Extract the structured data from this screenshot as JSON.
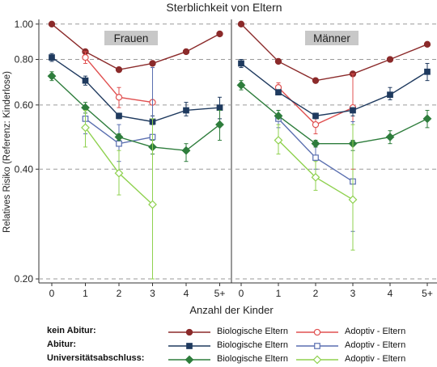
{
  "chart_data": {
    "type": "line",
    "title": "Sterblichkeit von Eltern",
    "xlabel": "Anzahl der Kinder",
    "ylabel": "Relatives Risiko (Referenz: Kinderlose)",
    "y_scale": "log",
    "ylim": [
      0.195,
      1.03
    ],
    "yticks": [
      1.0,
      0.8,
      0.6,
      0.4,
      0.2
    ],
    "ytick_labels": [
      "1.00",
      "0.80",
      "0.60",
      "0.40",
      "0.20"
    ],
    "x_categories": [
      "0",
      "1",
      "2",
      "3",
      "4",
      "5+"
    ],
    "grid": "dashed horizontal",
    "colors": {
      "kein_bio": "#8b2a2a",
      "kein_adopt": "#e05050",
      "abitur_bio": "#1f3a5f",
      "abitur_adopt": "#5a6fb0",
      "uni_bio": "#2e7d3c",
      "uni_adopt": "#8fd14f"
    },
    "panels": [
      {
        "label": "Frauen",
        "series": [
          {
            "key": "kein_bio",
            "marker": "circle-filled",
            "points": [
              {
                "x": 0,
                "y": 1.0
              },
              {
                "x": 1,
                "y": 0.84
              },
              {
                "x": 2,
                "y": 0.75
              },
              {
                "x": 3,
                "y": 0.78
              },
              {
                "x": 4,
                "y": 0.84
              },
              {
                "x": 5,
                "y": 0.94
              }
            ]
          },
          {
            "key": "kein_adopt",
            "marker": "circle-open",
            "points": [
              {
                "x": 1,
                "y": 0.81,
                "lo": 0.78,
                "hi": 0.84
              },
              {
                "x": 2,
                "y": 0.63,
                "lo": 0.59,
                "hi": 0.67
              },
              {
                "x": 3,
                "y": 0.61,
                "lo": 0.32,
                "hi": 0.76
              }
            ]
          },
          {
            "key": "abitur_bio",
            "marker": "square-filled",
            "points": [
              {
                "x": 0,
                "y": 0.81,
                "lo": 0.79,
                "hi": 0.83
              },
              {
                "x": 1,
                "y": 0.7,
                "lo": 0.68,
                "hi": 0.72
              },
              {
                "x": 2,
                "y": 0.56,
                "lo": 0.55,
                "hi": 0.57
              },
              {
                "x": 3,
                "y": 0.54,
                "lo": 0.53,
                "hi": 0.56
              },
              {
                "x": 4,
                "y": 0.58,
                "lo": 0.56,
                "hi": 0.61
              },
              {
                "x": 5,
                "y": 0.59,
                "lo": 0.55,
                "hi": 0.63
              }
            ]
          },
          {
            "key": "abitur_adopt",
            "marker": "square-open",
            "points": [
              {
                "x": 1,
                "y": 0.55,
                "lo": 0.5,
                "hi": 0.58
              },
              {
                "x": 2,
                "y": 0.47,
                "lo": 0.42,
                "hi": 0.53
              },
              {
                "x": 3,
                "y": 0.49,
                "lo": 0.32,
                "hi": 0.76
              }
            ]
          },
          {
            "key": "uni_bio",
            "marker": "diamond-filled",
            "points": [
              {
                "x": 0,
                "y": 0.72,
                "lo": 0.7,
                "hi": 0.74
              },
              {
                "x": 1,
                "y": 0.59,
                "lo": 0.57,
                "hi": 0.61
              },
              {
                "x": 2,
                "y": 0.49,
                "lo": 0.48,
                "hi": 0.5
              },
              {
                "x": 3,
                "y": 0.46,
                "lo": 0.44,
                "hi": 0.48
              },
              {
                "x": 4,
                "y": 0.45,
                "lo": 0.42,
                "hi": 0.47
              },
              {
                "x": 5,
                "y": 0.53,
                "lo": 0.48,
                "hi": 0.58
              }
            ]
          },
          {
            "key": "uni_adopt",
            "marker": "diamond-open",
            "points": [
              {
                "x": 1,
                "y": 0.52,
                "lo": 0.46,
                "hi": 0.58
              },
              {
                "x": 2,
                "y": 0.39,
                "lo": 0.34,
                "hi": 0.45
              },
              {
                "x": 3,
                "y": 0.32,
                "lo": 0.2,
                "hi": 0.55
              }
            ]
          }
        ]
      },
      {
        "label": "Männer",
        "series": [
          {
            "key": "kein_bio",
            "marker": "circle-filled",
            "points": [
              {
                "x": 0,
                "y": 1.0
              },
              {
                "x": 1,
                "y": 0.79
              },
              {
                "x": 2,
                "y": 0.7
              },
              {
                "x": 3,
                "y": 0.73
              },
              {
                "x": 4,
                "y": 0.8
              },
              {
                "x": 5,
                "y": 0.88
              }
            ]
          },
          {
            "key": "kein_adopt",
            "marker": "circle-open",
            "points": [
              {
                "x": 1,
                "y": 0.67,
                "lo": 0.64,
                "hi": 0.69
              },
              {
                "x": 2,
                "y": 0.53,
                "lo": 0.5,
                "hi": 0.56
              },
              {
                "x": 3,
                "y": 0.59,
                "lo": 0.4,
                "hi": 0.73
              }
            ]
          },
          {
            "key": "abitur_bio",
            "marker": "square-filled",
            "points": [
              {
                "x": 0,
                "y": 0.78,
                "lo": 0.76,
                "hi": 0.8
              },
              {
                "x": 1,
                "y": 0.65,
                "lo": 0.64,
                "hi": 0.66
              },
              {
                "x": 2,
                "y": 0.56,
                "lo": 0.55,
                "hi": 0.57
              },
              {
                "x": 3,
                "y": 0.58,
                "lo": 0.56,
                "hi": 0.59
              },
              {
                "x": 4,
                "y": 0.64,
                "lo": 0.62,
                "hi": 0.67
              },
              {
                "x": 5,
                "y": 0.74,
                "lo": 0.7,
                "hi": 0.78
              }
            ]
          },
          {
            "key": "abitur_adopt",
            "marker": "square-open",
            "points": [
              {
                "x": 1,
                "y": 0.55,
                "lo": 0.52,
                "hi": 0.58
              },
              {
                "x": 2,
                "y": 0.43,
                "lo": 0.4,
                "hi": 0.46
              },
              {
                "x": 3,
                "y": 0.37,
                "lo": 0.27,
                "hi": 0.54
              }
            ]
          },
          {
            "key": "uni_bio",
            "marker": "diamond-filled",
            "points": [
              {
                "x": 0,
                "y": 0.68,
                "lo": 0.66,
                "hi": 0.7
              },
              {
                "x": 1,
                "y": 0.56,
                "lo": 0.55,
                "hi": 0.58
              },
              {
                "x": 2,
                "y": 0.47,
                "lo": 0.46,
                "hi": 0.48
              },
              {
                "x": 3,
                "y": 0.47,
                "lo": 0.45,
                "hi": 0.48
              },
              {
                "x": 4,
                "y": 0.49,
                "lo": 0.47,
                "hi": 0.51
              },
              {
                "x": 5,
                "y": 0.55,
                "lo": 0.52,
                "hi": 0.58
              }
            ]
          },
          {
            "key": "uni_adopt",
            "marker": "diamond-open",
            "points": [
              {
                "x": 1,
                "y": 0.48,
                "lo": 0.44,
                "hi": 0.53
              },
              {
                "x": 2,
                "y": 0.38,
                "lo": 0.35,
                "hi": 0.42
              },
              {
                "x": 3,
                "y": 0.33,
                "lo": 0.24,
                "hi": 0.53
              }
            ]
          }
        ]
      }
    ],
    "legend": {
      "placement": "bottom",
      "rows": [
        {
          "group": "kein Abitur:",
          "bio_label": "Biologische Eltern",
          "adopt_label": "Adoptiv - Eltern",
          "bio_key": "kein_bio",
          "adopt_key": "kein_adopt",
          "bio_marker": "circle-filled",
          "adopt_marker": "circle-open"
        },
        {
          "group": "Abitur:",
          "bio_label": "Biologische Eltern",
          "adopt_label": "Adoptiv - Eltern",
          "bio_key": "abitur_bio",
          "adopt_key": "abitur_adopt",
          "bio_marker": "square-filled",
          "adopt_marker": "square-open"
        },
        {
          "group": "Universitätsabschluss:",
          "bio_label": "Biologische Eltern",
          "adopt_label": "Adoptiv - Eltern",
          "bio_key": "uni_bio",
          "adopt_key": "uni_adopt",
          "bio_marker": "diamond-filled",
          "adopt_marker": "diamond-open"
        }
      ]
    }
  }
}
